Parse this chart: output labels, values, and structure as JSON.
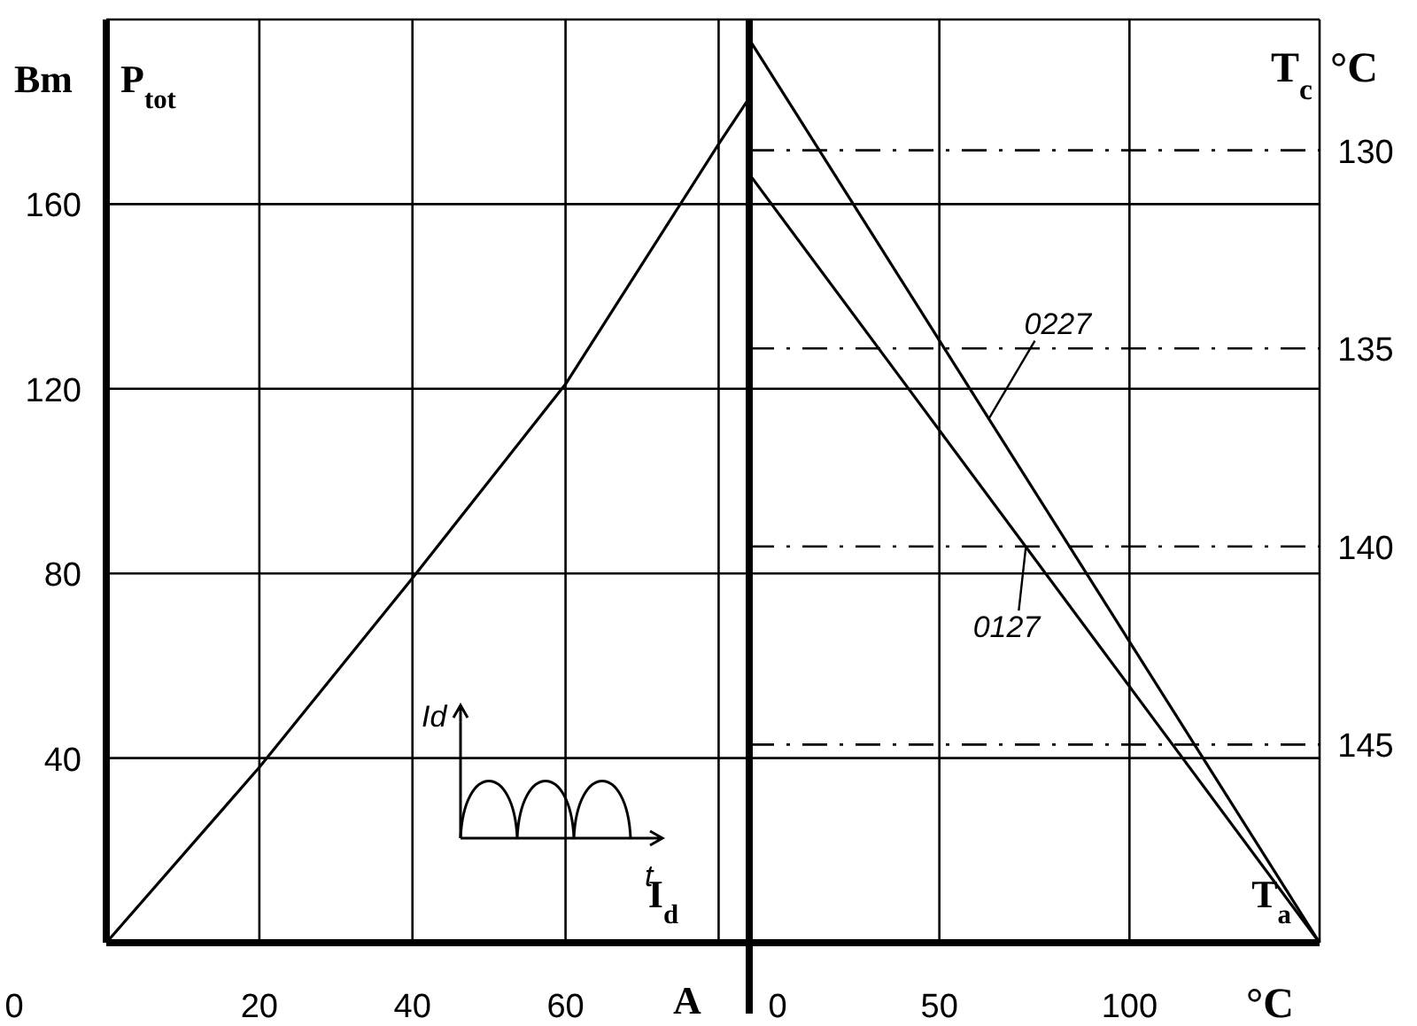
{
  "chart_data": [
    {
      "type": "line",
      "xlabel": "I$_{d}$",
      "ylabel": "P$_{tot}$",
      "annotations": [
        "Bm",
        "A",
        "Id",
        "t",
        "0"
      ],
      "x": [
        0,
        20,
        40,
        60,
        80,
        84
      ],
      "values": [
        0,
        38,
        79,
        121,
        173,
        183
      ],
      "color": "#000000",
      "xlim": [
        0,
        84
      ],
      "xticks": [
        {
          "value": 0,
          "label": null
        },
        20,
        40,
        60,
        {
          "value": 80,
          "label": null
        }
      ],
      "ylim": [
        0,
        200
      ],
      "yticks": [
        40,
        80,
        120,
        160
      ],
      "grid": true,
      "marker": "none",
      "line_style": "solid"
    },
    {
      "type": "line",
      "xlabel": "T$_{a}$",
      "y2label": "T$_{c}$",
      "annotations": [
        "°C",
        "°C"
      ],
      "series": [
        {
          "name": "0227",
          "color": "#000000",
          "axis": "y2",
          "values": [
            127.2,
            150
          ]
        },
        {
          "name": "0127",
          "color": "#000000",
          "axis": "y2",
          "values": [
            130.6,
            150
          ]
        }
      ],
      "x": [
        0,
        150
      ],
      "xlim": [
        0,
        150
      ],
      "xticks": [
        0,
        50,
        100
      ],
      "y2lim": [
        150,
        126.7
      ],
      "y2ticks": [
        130,
        135,
        140,
        145
      ],
      "grid": true,
      "marker": "none",
      "line_style": "solid"
    }
  ]
}
